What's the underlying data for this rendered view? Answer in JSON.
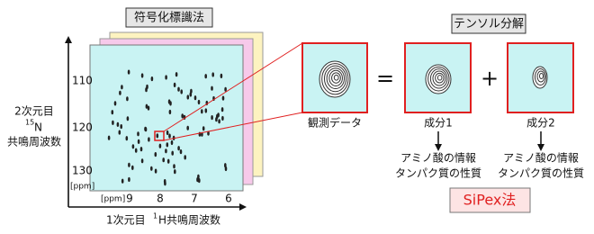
{
  "encoding_title": "符号化標識法",
  "spectrum": {
    "y_label": {
      "line1": "2次元目",
      "isotope_mass": "15",
      "isotope": "N",
      "line3": "共鳴周波数"
    },
    "y_unit": "[ppm]",
    "y_ticks": [
      "110",
      "120",
      "130"
    ],
    "x_unit": "[ppm]",
    "x_ticks": [
      "9",
      "8",
      "7",
      "6"
    ],
    "x_label": {
      "prefix": "1次元目",
      "isotope_mass": "1",
      "rest": "H共鳴周波数"
    }
  },
  "tensor_title": "テンソル分解",
  "observed": "観測データ",
  "equals": "=",
  "plus": "+",
  "components": [
    {
      "label": "成分1",
      "info": [
        "アミノ酸の情報",
        "タンパク質の性質"
      ]
    },
    {
      "label": "成分2",
      "info": [
        "アミノ酸の情報",
        "タンパク質の性質"
      ]
    }
  ],
  "method": "SiPex法"
}
